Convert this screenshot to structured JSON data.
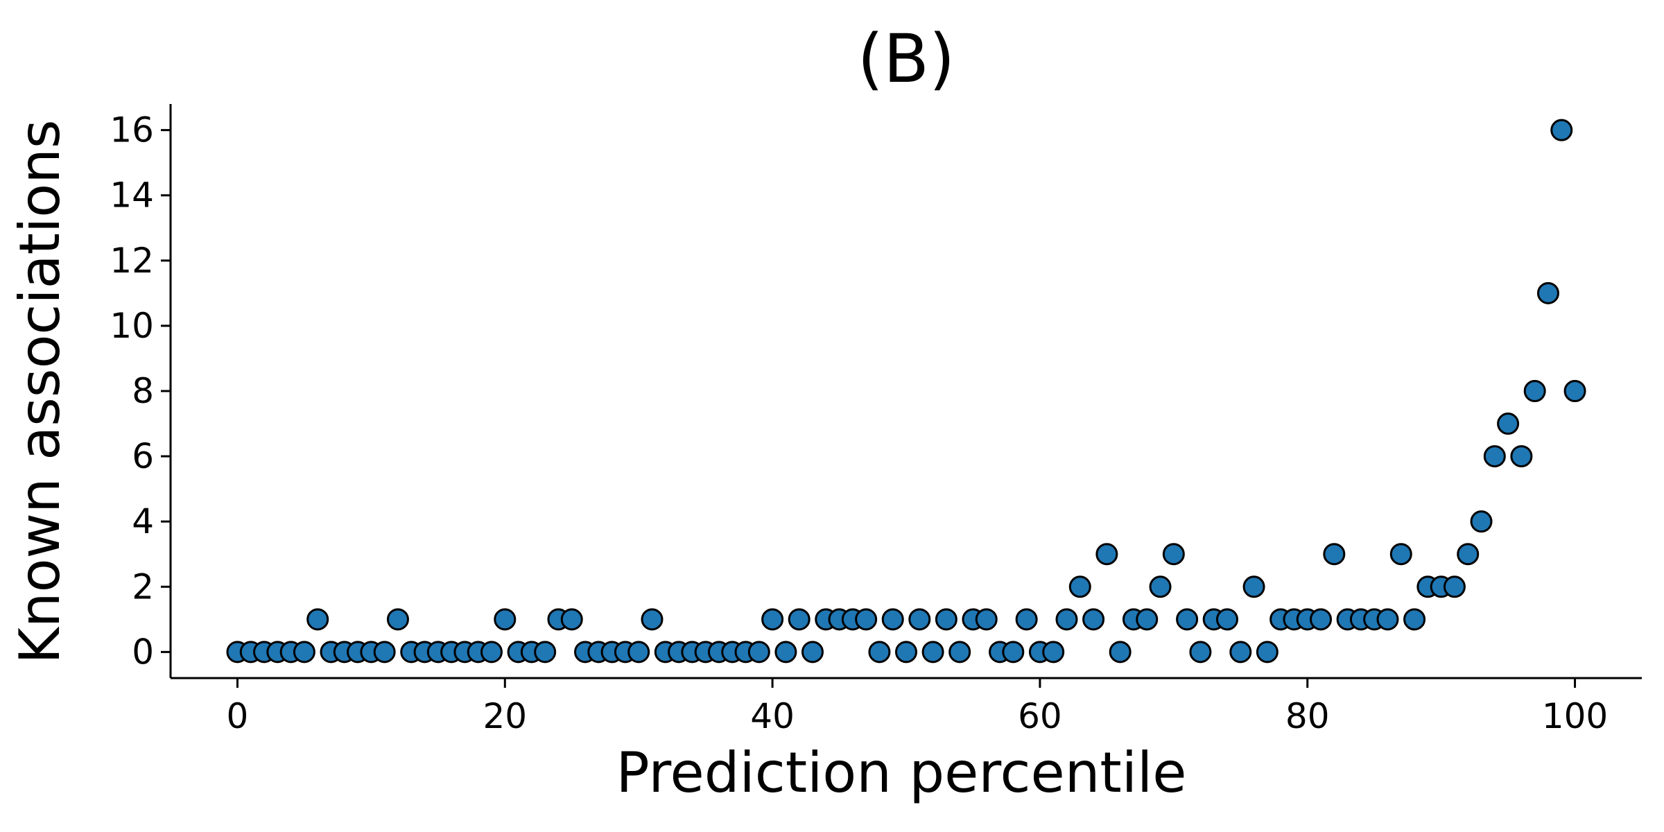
{
  "chart_data": {
    "type": "scatter",
    "title": "(B)",
    "xlabel": "Prediction percentile",
    "ylabel": "Known associations",
    "xlim": [
      -5,
      105
    ],
    "ylim": [
      -0.8,
      16.8
    ],
    "xticks": [
      0,
      20,
      40,
      60,
      80,
      100
    ],
    "yticks": [
      0,
      2,
      4,
      6,
      8,
      10,
      12,
      14,
      16
    ],
    "grid": false,
    "marker_color": "#1f77b4",
    "marker_edge_color": "#000000",
    "x": [
      0,
      1,
      2,
      3,
      4,
      5,
      6,
      7,
      8,
      9,
      10,
      11,
      12,
      13,
      14,
      15,
      16,
      17,
      18,
      19,
      20,
      21,
      22,
      23,
      24,
      25,
      26,
      27,
      28,
      29,
      30,
      31,
      32,
      33,
      34,
      35,
      36,
      37,
      38,
      39,
      40,
      41,
      42,
      43,
      44,
      45,
      46,
      47,
      48,
      49,
      50,
      51,
      52,
      53,
      54,
      55,
      56,
      57,
      58,
      59,
      60,
      61,
      62,
      63,
      64,
      65,
      66,
      67,
      68,
      69,
      70,
      71,
      72,
      73,
      74,
      75,
      76,
      77,
      78,
      79,
      80,
      81,
      82,
      83,
      84,
      85,
      86,
      87,
      88,
      89,
      90,
      91,
      92,
      93,
      94,
      95,
      96,
      97,
      98,
      99,
      100
    ],
    "y": [
      0,
      0,
      0,
      0,
      0,
      0,
      1,
      0,
      0,
      0,
      0,
      0,
      1,
      0,
      0,
      0,
      0,
      0,
      0,
      0,
      1,
      0,
      0,
      0,
      1,
      1,
      0,
      0,
      0,
      0,
      0,
      1,
      0,
      0,
      0,
      0,
      0,
      0,
      0,
      0,
      1,
      0,
      1,
      0,
      1,
      1,
      1,
      1,
      0,
      1,
      0,
      1,
      0,
      1,
      0,
      1,
      1,
      0,
      0,
      1,
      0,
      0,
      1,
      2,
      1,
      3,
      0,
      1,
      1,
      2,
      3,
      1,
      0,
      1,
      1,
      0,
      2,
      0,
      1,
      1,
      1,
      1,
      3,
      1,
      1,
      1,
      1,
      3,
      1,
      2,
      2,
      2,
      3,
      4,
      6,
      7,
      6,
      8,
      11,
      16,
      8
    ]
  }
}
